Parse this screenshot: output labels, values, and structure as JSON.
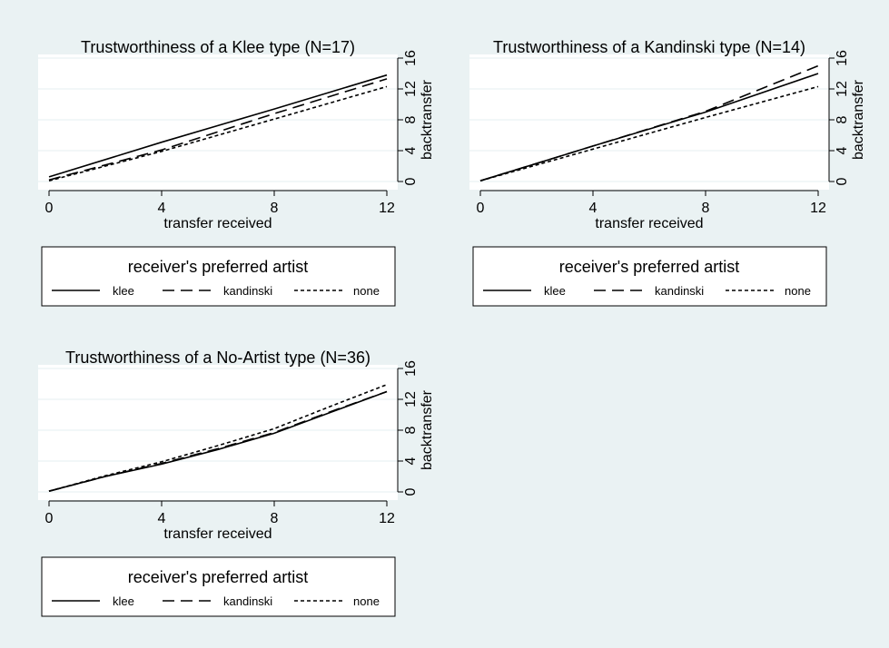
{
  "colors": {
    "background": "#eaf2f3",
    "plot_area": "#ffffff",
    "grid": "#eaf2f3",
    "line": "#000000"
  },
  "chart_data": [
    {
      "type": "line",
      "title": "Trustworthiness of a Klee type (N=17)",
      "xlabel": "transfer received",
      "ylabel": "backtransfer",
      "xlim": [
        0,
        12
      ],
      "ylim": [
        0,
        16
      ],
      "xticks": [
        0,
        4,
        8,
        12
      ],
      "yticks": [
        0,
        4,
        8,
        12,
        16
      ],
      "y_axis_side": "right",
      "grid": true,
      "legend": {
        "title": "receiver's preferred artist",
        "placement": "below",
        "entries": [
          "klee",
          "kandinski",
          "none"
        ]
      },
      "x": [
        0,
        4,
        8,
        12
      ],
      "series": [
        {
          "name": "klee",
          "dash": "solid",
          "values": [
            0.6,
            5.1,
            9.4,
            13.8
          ]
        },
        {
          "name": "kandinski",
          "dash": "long-dash",
          "values": [
            0.2,
            4.1,
            8.8,
            13.3
          ]
        },
        {
          "name": "none",
          "dash": "short-dash",
          "values": [
            0.1,
            3.9,
            8.1,
            12.3
          ]
        }
      ]
    },
    {
      "type": "line",
      "title": "Trustworthiness of a Kandinski type (N=14)",
      "xlabel": "transfer received",
      "ylabel": "backtransfer",
      "xlim": [
        0,
        12
      ],
      "ylim": [
        0,
        16
      ],
      "xticks": [
        0,
        4,
        8,
        12
      ],
      "yticks": [
        0,
        4,
        8,
        12,
        16
      ],
      "y_axis_side": "right",
      "grid": true,
      "legend": {
        "title": "receiver's preferred artist",
        "placement": "below",
        "entries": [
          "klee",
          "kandinski",
          "none"
        ]
      },
      "x": [
        0,
        4,
        8,
        12
      ],
      "series": [
        {
          "name": "klee",
          "dash": "solid",
          "values": [
            0.1,
            4.6,
            9.0,
            14.0
          ]
        },
        {
          "name": "kandinski",
          "dash": "long-dash",
          "values": [
            0.1,
            4.6,
            9.1,
            15.0
          ]
        },
        {
          "name": "none",
          "dash": "short-dash",
          "values": [
            0.1,
            4.2,
            8.3,
            12.3
          ]
        }
      ]
    },
    {
      "type": "line",
      "title": "Trustworthiness of a No-Artist type (N=36)",
      "xlabel": "transfer received",
      "ylabel": "backtransfer",
      "xlim": [
        0,
        12
      ],
      "ylim": [
        0,
        16
      ],
      "xticks": [
        0,
        4,
        8,
        12
      ],
      "yticks": [
        0,
        4,
        8,
        12,
        16
      ],
      "y_axis_side": "right",
      "grid": true,
      "legend": {
        "title": "receiver's preferred artist",
        "placement": "below",
        "entries": [
          "klee",
          "kandinski",
          "none"
        ]
      },
      "x": [
        0,
        2,
        4,
        6,
        8,
        10,
        12
      ],
      "series": [
        {
          "name": "klee",
          "dash": "solid",
          "values": [
            0.1,
            2.0,
            3.6,
            5.5,
            7.6,
            10.3,
            13.0
          ]
        },
        {
          "name": "kandinski",
          "dash": "long-dash",
          "values": [
            0.1,
            2.0,
            3.7,
            5.6,
            7.7,
            10.4,
            13.0
          ]
        },
        {
          "name": "none",
          "dash": "short-dash",
          "values": [
            0.1,
            2.1,
            3.9,
            6.0,
            8.2,
            11.1,
            13.9
          ]
        }
      ]
    }
  ]
}
